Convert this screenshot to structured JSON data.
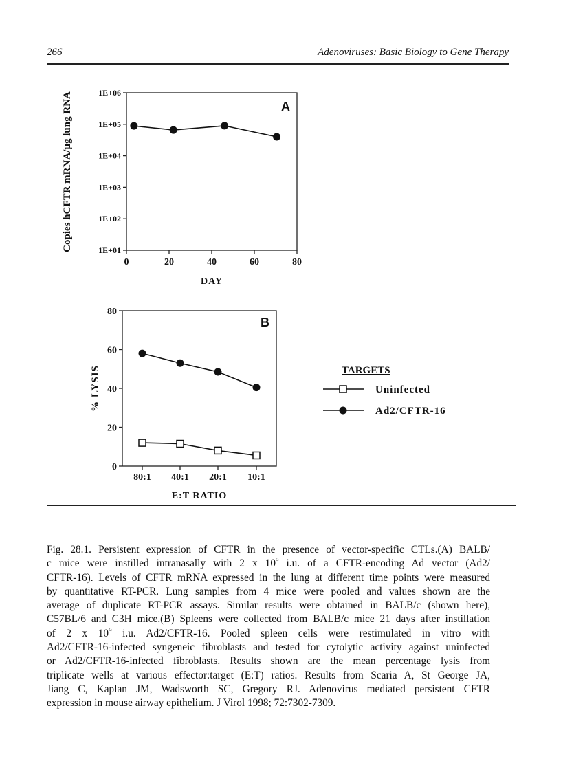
{
  "header": {
    "page_number": "266",
    "running_title": "Adenoviruses: Basic Biology to Gene Therapy"
  },
  "chart_data": [
    {
      "type": "line",
      "panel_label": "A",
      "xlabel": "DAY",
      "ylabel": "Copies hCFTR mRNA/µg lung RNA",
      "x_scale": "linear",
      "y_scale": "log",
      "xlim": [
        0,
        80
      ],
      "ylim": [
        10,
        1000000
      ],
      "x_ticks": [
        "0",
        "20",
        "40",
        "60",
        "80"
      ],
      "y_ticks": [
        "1E+01",
        "1E+02",
        "1E+03",
        "1E+04",
        "1E+05",
        "1E+06"
      ],
      "grid": false,
      "series": [
        {
          "marker": "filled-circle",
          "x": [
            3.5,
            22,
            46,
            70.5
          ],
          "y": [
            89000,
            66000,
            90000,
            40000
          ]
        }
      ]
    },
    {
      "type": "line",
      "panel_label": "B",
      "xlabel": "E:T RATIO",
      "ylabel": "% LYSIS",
      "categories": [
        "80:1",
        "40:1",
        "20:1",
        "10:1"
      ],
      "ylim": [
        0,
        80
      ],
      "y_ticks": [
        "0",
        "20",
        "40",
        "60",
        "80"
      ],
      "grid": false,
      "legend": {
        "title": "TARGETS",
        "placement": "right"
      },
      "series": [
        {
          "name": "Uninfected",
          "marker": "open-square",
          "values": [
            12,
            11.5,
            8,
            5.5
          ]
        },
        {
          "name": "Ad2/CFTR-16",
          "marker": "filled-circle",
          "values": [
            58,
            53,
            48.5,
            40.5
          ]
        }
      ]
    }
  ],
  "caption": {
    "lines": [
      {
        "a": "Fig. 28.1. Persistent expression of CFTR in the presence of vector-specific CTLs.(A) BALB/",
        "sup": "",
        "b": ""
      },
      {
        "a": "c mice were instilled intranasally with 2 x 10",
        "sup": "9",
        "b": " i.u. of a CFTR-encoding Ad vector (Ad2/"
      },
      {
        "a": "CFTR-16). Levels of CFTR mRNA expressed in the lung at different time points were measured",
        "sup": "",
        "b": ""
      },
      {
        "a": "by quantitative RT-PCR. Lung samples from 4 mice were pooled and values shown are the",
        "sup": "",
        "b": ""
      },
      {
        "a": "average of duplicate RT-PCR assays. Similar results were obtained in BALB/c (shown here),",
        "sup": "",
        "b": ""
      },
      {
        "a": "C57BL/6 and C3H mice.(B) Spleens were collected from BALB/c mice 21 days after instillation",
        "sup": "",
        "b": ""
      },
      {
        "a": "of 2 x 10",
        "sup": "9",
        "b": " i.u. Ad2/CFTR-16. Pooled spleen cells were restimulated in vitro with"
      },
      {
        "a": "Ad2/CFTR-16-infected syngeneic fibroblasts and tested for cytolytic activity against uninfected",
        "sup": "",
        "b": ""
      },
      {
        "a": "or Ad2/CFTR-16-infected fibroblasts. Results shown are the mean percentage lysis from",
        "sup": "",
        "b": ""
      },
      {
        "a": "triplicate wells at various effector:target (E:T) ratios. Results from Scaria A, St George JA,",
        "sup": "",
        "b": ""
      },
      {
        "a": "Jiang C, Kaplan JM, Wadsworth SC, Gregory RJ. Adenovirus mediated persistent CFTR",
        "sup": "",
        "b": ""
      },
      {
        "a": "expression in mouse airway epithelium. J Virol 1998; 72:7302-7309.",
        "sup": "",
        "b": ""
      }
    ]
  }
}
